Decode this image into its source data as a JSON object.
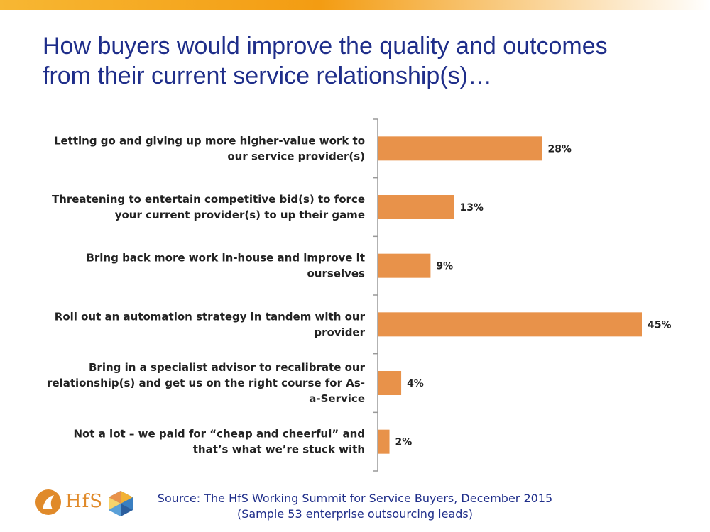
{
  "slide": {
    "title_lines": [
      "How buyers would improve the quality and outcomes",
      "from their current service relationship(s)…"
    ],
    "source_lines": [
      "Source:  The HfS Working Summit for Service Buyers, December 2015",
      "(Sample 53 enterprise outsourcing leads)"
    ],
    "logo_text": "HfS",
    "colors": {
      "title": "#1f2e8a",
      "bar": "#e8924a",
      "axis": "#999999",
      "band": "#f39c12"
    }
  },
  "chart_data": {
    "type": "bar",
    "orientation": "horizontal",
    "categories": [
      [
        "Letting go and giving up more higher-value work to",
        "our service provider(s)"
      ],
      [
        "Threatening to entertain competitive bid(s) to force",
        "your current provider(s) to up their game"
      ],
      [
        "Bring back more work in-house and improve it",
        "ourselves"
      ],
      [
        "Roll out an automation strategy in tandem with our",
        "provider"
      ],
      [
        "Bring in a specialist advisor to recalibrate our",
        "relationship(s) and get us on the right course for As-",
        "a-Service"
      ],
      [
        "Not a lot – we paid for “cheap and cheerful” and",
        "that’s what we’re stuck with"
      ]
    ],
    "values": [
      28,
      13,
      9,
      45,
      4,
      2
    ],
    "value_labels": [
      "28%",
      "13%",
      "9%",
      "45%",
      "4%",
      "2%"
    ],
    "unit": "%",
    "xlim": [
      0,
      45
    ],
    "grid": false,
    "legend": "none"
  }
}
